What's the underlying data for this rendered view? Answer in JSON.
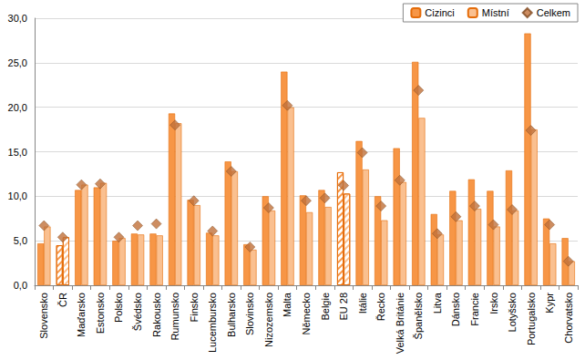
{
  "chart_data": {
    "type": "bar",
    "categories": [
      "Slovensko",
      "ČR",
      "Maďarsko",
      "Estonsko",
      "Polsko",
      "Švédsko",
      "Rakousko",
      "Rumunsko",
      "Finsko",
      "Lucembursko",
      "Bulharsko",
      "Slovinsko",
      "Nizozemsko",
      "Malta",
      "Německo",
      "Belgie",
      "EU 28",
      "Itálie",
      "Řecko",
      "Velká Británie",
      "Španělsko",
      "Litva",
      "Dánsko",
      "Francie",
      "Irsko",
      "Lotyšsko",
      "Portugalsko",
      "Kypr",
      "Chorvatsko"
    ],
    "series": [
      {
        "name": "Cizinci",
        "type": "bar",
        "color": "#f79646",
        "values": [
          4.7,
          4.5,
          10.7,
          11.0,
          5.0,
          5.8,
          5.8,
          19.3,
          9.6,
          5.9,
          13.9,
          4.6,
          10.0,
          24.0,
          10.1,
          10.7,
          12.7,
          16.2,
          10.0,
          15.4,
          25.1,
          8.0,
          10.6,
          11.9,
          10.6,
          12.9,
          28.3,
          7.5,
          5.3
        ]
      },
      {
        "name": "Místní",
        "type": "bar",
        "color": "#fac090",
        "values": [
          6.6,
          5.4,
          11.3,
          11.5,
          5.3,
          5.7,
          5.6,
          18.2,
          9.0,
          5.6,
          12.8,
          4.0,
          8.4,
          20.0,
          8.2,
          8.8,
          10.3,
          13.0,
          7.3,
          11.6,
          18.8,
          5.7,
          7.3,
          8.6,
          6.6,
          8.4,
          17.5,
          4.7,
          2.7
        ]
      },
      {
        "name": "Celkem",
        "type": "scatter",
        "marker": "diamond",
        "color": "#c0703a",
        "values": [
          6.7,
          5.4,
          11.3,
          11.4,
          5.4,
          6.7,
          6.9,
          18.0,
          9.5,
          6.1,
          12.8,
          4.3,
          8.7,
          20.2,
          9.5,
          9.8,
          11.2,
          14.9,
          8.9,
          11.8,
          21.9,
          5.8,
          7.7,
          8.9,
          6.8,
          8.5,
          17.4,
          6.8,
          2.7
        ]
      }
    ],
    "ylim": [
      0,
      30
    ],
    "yticks": [
      {
        "value": 0,
        "label": "0,0"
      },
      {
        "value": 5,
        "label": "5,0"
      },
      {
        "value": 10,
        "label": "10,0"
      },
      {
        "value": 15,
        "label": "15,0"
      },
      {
        "value": 20,
        "label": "20,0"
      },
      {
        "value": 25,
        "label": "25,0"
      },
      {
        "value": 30,
        "label": "30,0"
      }
    ],
    "grid": true,
    "legend": "top-right"
  }
}
